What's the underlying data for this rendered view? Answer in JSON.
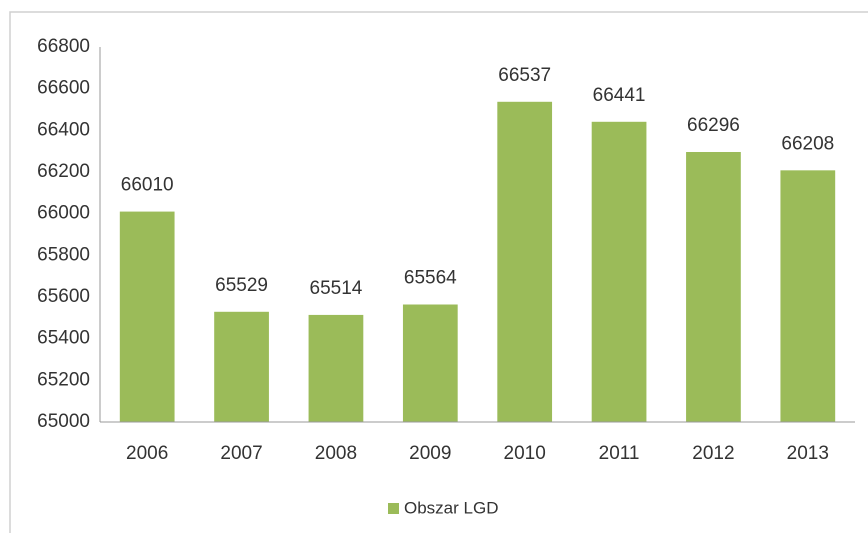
{
  "chart_data": {
    "type": "bar",
    "categories": [
      "2006",
      "2007",
      "2008",
      "2009",
      "2010",
      "2011",
      "2012",
      "2013"
    ],
    "series": [
      {
        "name": "Obszar LGD",
        "color": "#9bbb59",
        "values": [
          66010,
          65529,
          65514,
          65564,
          66537,
          66441,
          66296,
          66208
        ]
      }
    ],
    "ylim": [
      65000,
      66800
    ],
    "yticks": [
      65000,
      65200,
      65400,
      65600,
      65800,
      66000,
      66200,
      66400,
      66600,
      66800
    ],
    "grid": false,
    "legend": "bottom"
  }
}
